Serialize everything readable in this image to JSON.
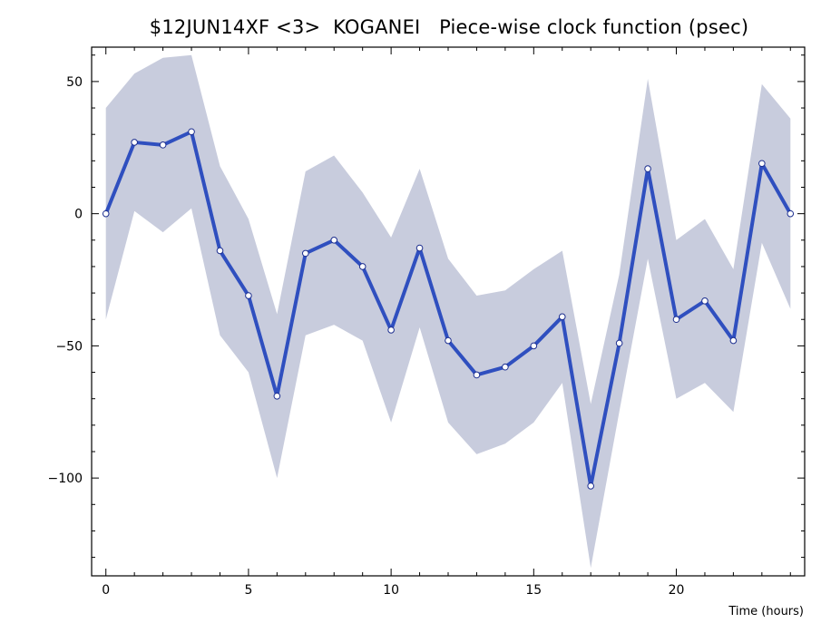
{
  "chart_data": {
    "type": "line",
    "title": "$12JUN14XF <3>  KOGANEI   Piece-wise clock function (psec)",
    "xlabel": "Time (hours)",
    "ylabel": "",
    "xlim": [
      -0.5,
      24.5
    ],
    "ylim": [
      -137,
      63
    ],
    "x_ticks": [
      0,
      5,
      10,
      15,
      20
    ],
    "y_ticks": [
      50,
      0,
      -50,
      -100
    ],
    "grid": false,
    "colors": {
      "line": "#2f4fbf",
      "band": "#c8ccdd",
      "marker_fill": "#ffffff"
    },
    "x": [
      0,
      1,
      2,
      3,
      4,
      5,
      6,
      7,
      8,
      9,
      10,
      11,
      12,
      13,
      14,
      15,
      16,
      17,
      18,
      19,
      20,
      21,
      22,
      23,
      24
    ],
    "values": [
      0,
      27,
      26,
      31,
      -14,
      -31,
      -69,
      -15,
      -10,
      -20,
      -44,
      -13,
      -48,
      -61,
      -58,
      -50,
      -39,
      -103,
      -49,
      17,
      -40,
      -33,
      -48,
      19,
      0
    ],
    "band_upper": [
      40,
      53,
      59,
      60,
      18,
      -2,
      -38,
      16,
      22,
      8,
      -9,
      17,
      -17,
      -31,
      -29,
      -21,
      -14,
      -72,
      -23,
      51,
      -10,
      -2,
      -21,
      49,
      36
    ],
    "band_lower": [
      -40,
      1,
      -7,
      2,
      -46,
      -60,
      -100,
      -46,
      -42,
      -48,
      -79,
      -43,
      -79,
      -91,
      -87,
      -79,
      -64,
      -134,
      -75,
      -17,
      -70,
      -64,
      -75,
      -11,
      -36
    ]
  }
}
